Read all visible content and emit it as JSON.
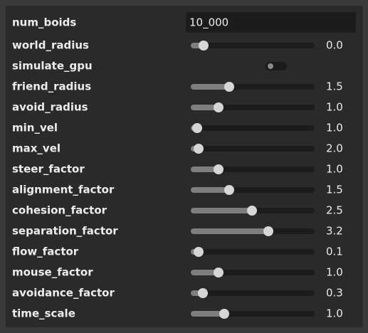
{
  "rows": [
    {
      "label": "num_boids",
      "value": "10_000"
    },
    {
      "label": "world_radius",
      "value": "0.0"
    },
    {
      "label": "simulate_gpu"
    },
    {
      "label": "friend_radius",
      "value": "1.5"
    },
    {
      "label": "avoid_radius",
      "value": "1.0"
    },
    {
      "label": "min_vel",
      "value": "1.0"
    },
    {
      "label": "max_vel",
      "value": "2.0"
    },
    {
      "label": "steer_factor",
      "value": "1.0"
    },
    {
      "label": "alignment_factor",
      "value": "1.5"
    },
    {
      "label": "cohesion_factor",
      "value": "2.5"
    },
    {
      "label": "separation_factor",
      "value": "3.2"
    },
    {
      "label": "flow_factor",
      "value": "0.1"
    },
    {
      "label": "mouse_factor",
      "value": "1.0"
    },
    {
      "label": "avoidance_factor",
      "value": "0.3"
    },
    {
      "label": "time_scale",
      "value": "1.0"
    }
  ]
}
